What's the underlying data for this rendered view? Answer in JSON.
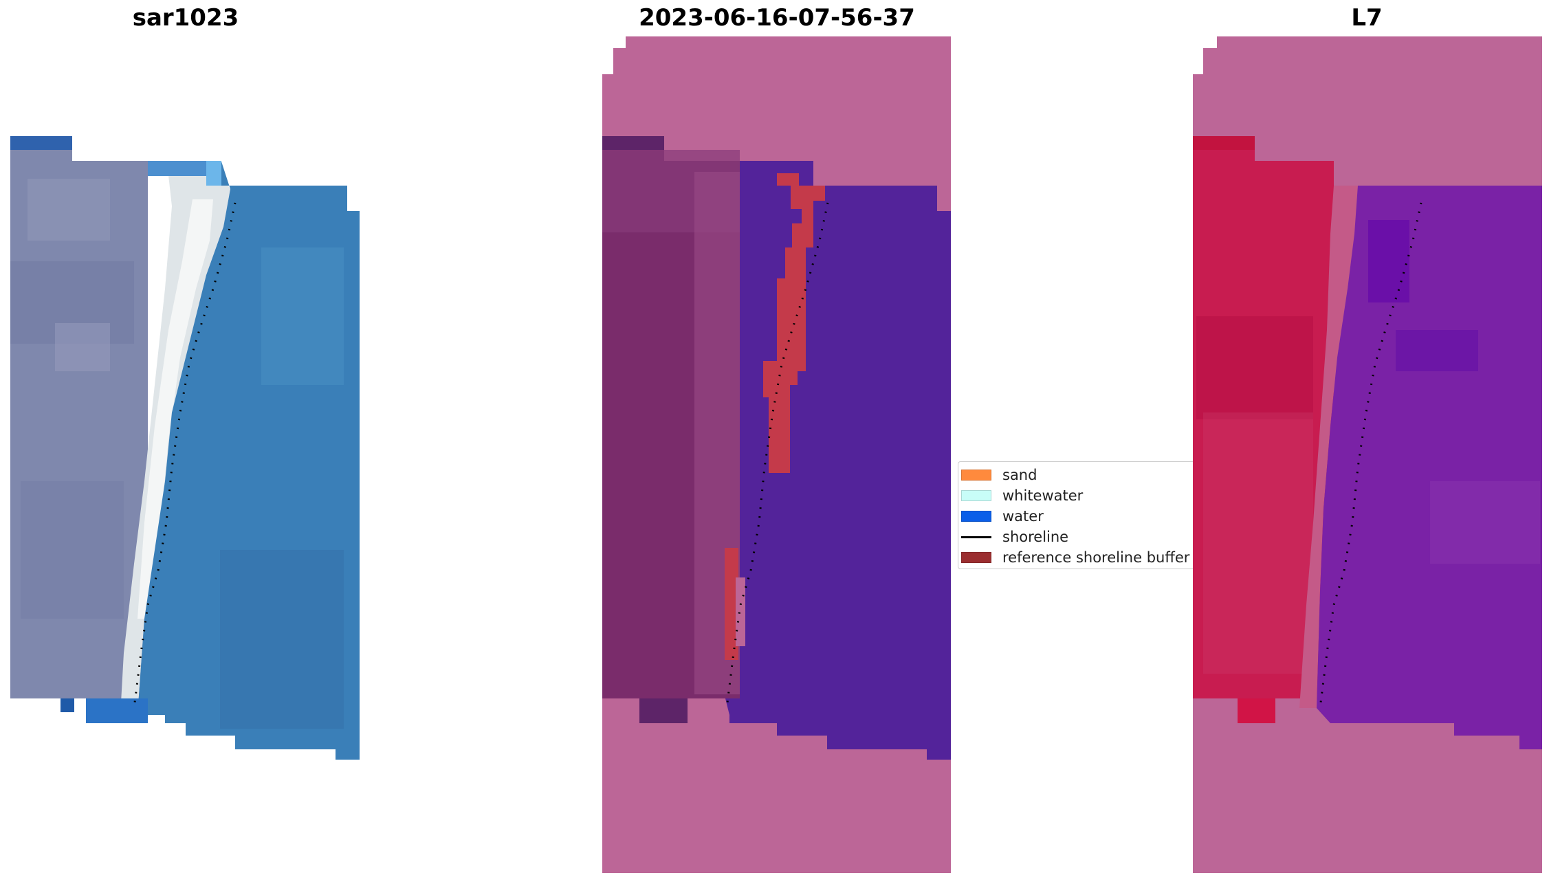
{
  "panels": [
    {
      "title": "sar1023"
    },
    {
      "title": "2023-06-16-07-56-37"
    },
    {
      "title": "L7"
    }
  ],
  "legend": {
    "items": [
      {
        "label": "sand",
        "color": "#ff8a3d",
        "kind": "patch"
      },
      {
        "label": "whitewater",
        "color": "#c8fdf8",
        "kind": "patch"
      },
      {
        "label": "water",
        "color": "#0a5ee8",
        "kind": "patch"
      },
      {
        "label": "shoreline",
        "color": "#000000",
        "kind": "line"
      },
      {
        "label": "reference shoreline buffer",
        "color": "#9b2e30",
        "kind": "patch"
      }
    ]
  },
  "colors": {
    "mask_pink": "#bc6697",
    "land_rgb": "#7d87ad",
    "water_rgb": "#3a7fb8",
    "whitewater_rgb": "#e8efee",
    "class_land": "#7a2c6b",
    "class_water": "#53239a",
    "buffer_red": "#c43a4a",
    "index_land": "#c81c50",
    "index_water": "#7a22a6"
  }
}
